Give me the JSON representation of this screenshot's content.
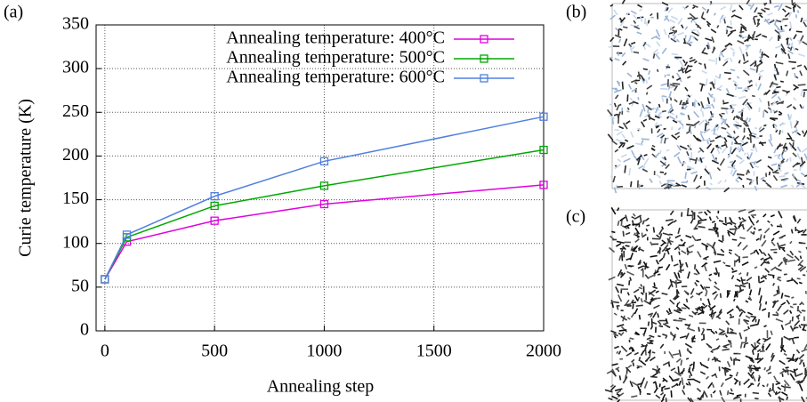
{
  "chart_data": {
    "type": "line",
    "panel_label": "(a)",
    "x_label": "Annealing step",
    "y_label": "Curie temperature (K)",
    "x": [
      0,
      100,
      500,
      1000,
      2000
    ],
    "series": [
      {
        "name": "Annealing temperature: 400°C",
        "color": "#e000e0",
        "values": [
          59,
          102,
          126,
          145,
          167
        ]
      },
      {
        "name": "Annealing temperature: 500°C",
        "color": "#00a800",
        "values": [
          59,
          107,
          143,
          166,
          207
        ]
      },
      {
        "name": "Annealing temperature: 600°C",
        "color": "#5080e0",
        "values": [
          59,
          110,
          154,
          194,
          245
        ]
      }
    ],
    "xlim": [
      -40,
      2000
    ],
    "xticks": [
      0,
      500,
      1000,
      1500,
      2000
    ],
    "ylim": [
      0,
      350
    ],
    "yticks": [
      0,
      50,
      100,
      150,
      200,
      250,
      300,
      350
    ],
    "grid": true,
    "legend": "upper left"
  },
  "images": [
    {
      "label": "(b)"
    },
    {
      "label": "(c)"
    }
  ]
}
